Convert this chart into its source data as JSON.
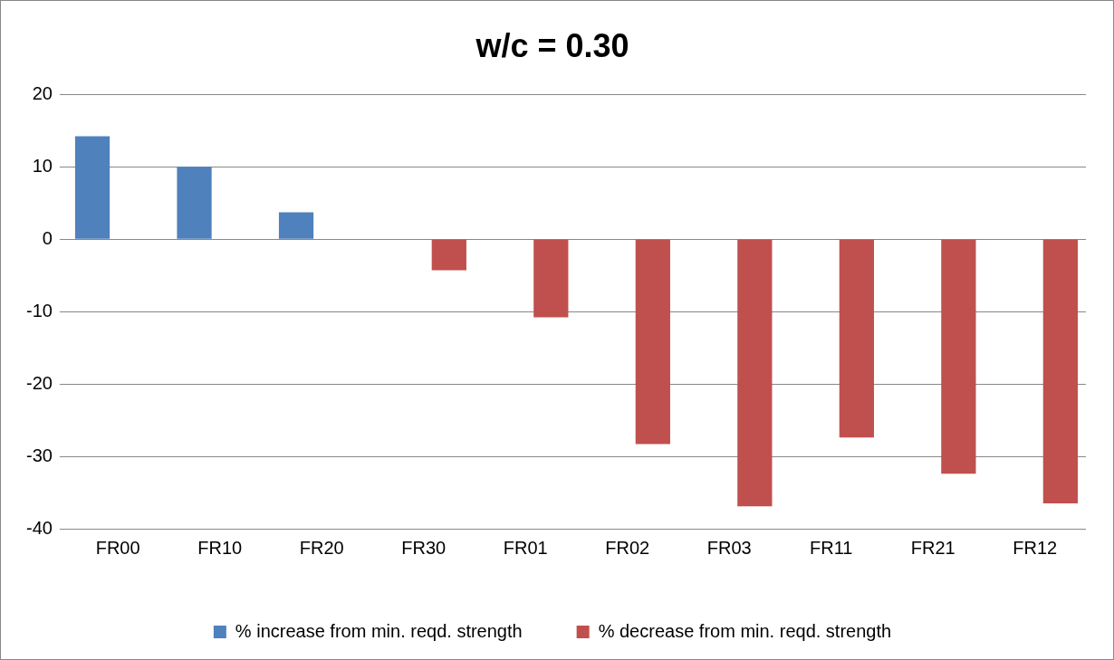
{
  "chart_data": {
    "type": "bar",
    "title": "w/c = 0.30",
    "categories": [
      "FR00",
      "FR10",
      "FR20",
      "FR30",
      "FR01",
      "FR02",
      "FR03",
      "FR11",
      "FR21",
      "FR12"
    ],
    "series": [
      {
        "name": "% increase from min. reqd. strength",
        "color": "#4f81bd",
        "values": [
          14.2,
          10.0,
          3.7,
          null,
          null,
          null,
          null,
          null,
          null,
          null
        ]
      },
      {
        "name": "% decrease from min. reqd. strength",
        "color": "#c0504d",
        "values": [
          null,
          null,
          null,
          -4.3,
          -10.8,
          -28.3,
          -36.9,
          -27.4,
          -32.4,
          -36.5
        ]
      }
    ],
    "ylim": [
      -40,
      20
    ],
    "yticks": [
      -40,
      -30,
      -20,
      -10,
      0,
      10,
      20
    ],
    "grid": "y",
    "legend": "bottom"
  }
}
